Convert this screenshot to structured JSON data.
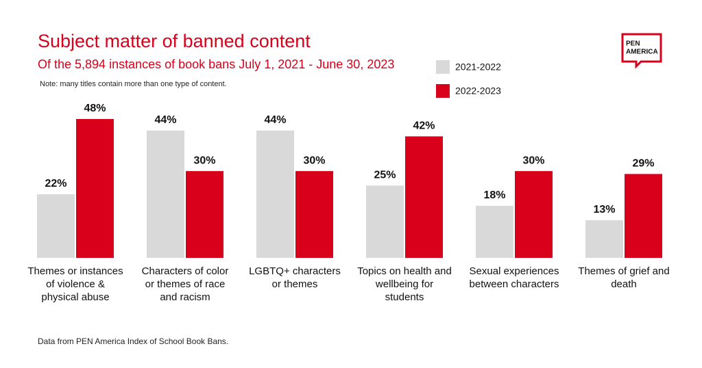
{
  "chart_data": {
    "type": "bar",
    "title": "Subject matter of banned content",
    "subtitle": "Of the 5,894 instances of book bans July 1, 2021 - June 30, 2023",
    "note": "Note: many titles contain more than one type of content.",
    "source": "Data from PEN America Index of School Book Bans.",
    "categories": [
      "Themes or instances of violence & physical abuse",
      "Characters of color or themes of race and racism",
      "LGBTQ+ characters or themes",
      "Topics on health and wellbeing for students",
      "Sexual experiences between characters",
      "Themes of grief and death"
    ],
    "series": [
      {
        "name": "2021-2022",
        "color": "#d9d9d9",
        "values": [
          22,
          44,
          44,
          25,
          18,
          13
        ],
        "value_labels": [
          "22%",
          "44%",
          "44%",
          "25%",
          "18%",
          "13%"
        ]
      },
      {
        "name": "2022-2023",
        "color": "#d9001b",
        "values": [
          48,
          30,
          30,
          42,
          30,
          29
        ],
        "value_labels": [
          "48%",
          "30%",
          "30%",
          "42%",
          "30%",
          "29%"
        ]
      }
    ],
    "legend": "top-right"
  },
  "logo": {
    "lines": [
      "PEN",
      "AMERICA"
    ]
  }
}
